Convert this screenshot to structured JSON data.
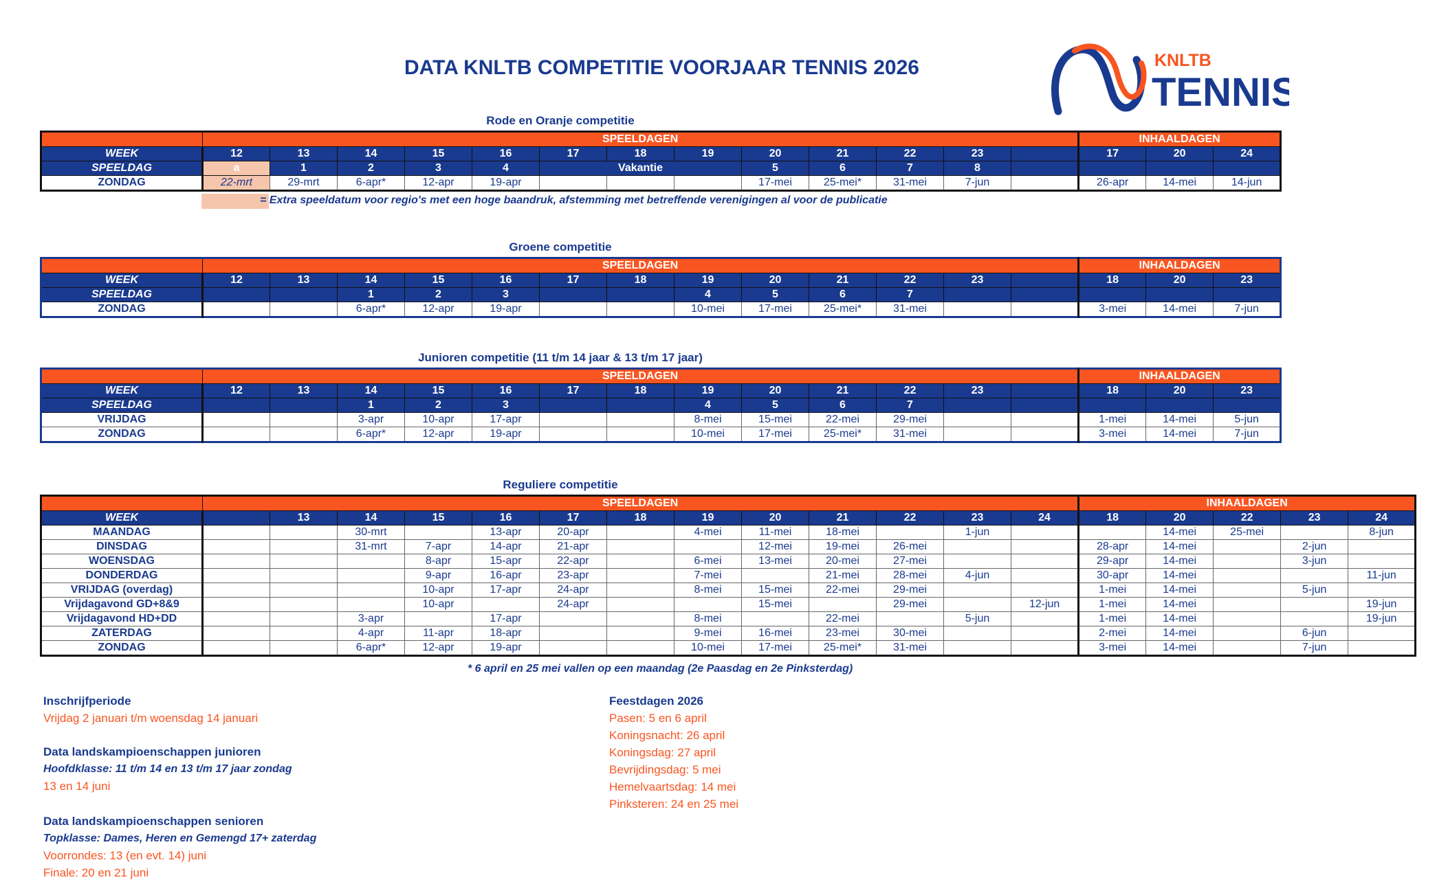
{
  "title": "DATA KNLTB COMPETITIE VOORJAAR TENNIS 2026",
  "logo": {
    "text_top": "KNLTB",
    "text_main": "TENNIS",
    "colors": {
      "orange": "#f95520",
      "blue": "#1a3a8f"
    }
  },
  "colors": {
    "orange": "#f95520",
    "blue": "#1a3a8f",
    "highlight": "#f5c6ac"
  },
  "tables": [
    {
      "title": "Rode en Oranje competitie",
      "speeldagen_label": "SPEELDAGEN",
      "inhaaldagen_label": "INHAALDAGEN",
      "week_label": "WEEK",
      "weeks": [
        "12",
        "13",
        "14",
        "15",
        "16",
        "17",
        "18",
        "19",
        "20",
        "21",
        "22",
        "23",
        ""
      ],
      "inhaal_weeks": [
        "17",
        "20",
        "24"
      ],
      "rows": [
        {
          "label": "SPEELDAG",
          "type": "head",
          "cells": [
            "a",
            "1",
            "2",
            "3",
            "4",
            "Vakantie",
            null,
            null,
            "5",
            "6",
            "7",
            "8",
            ""
          ],
          "inhaal": [
            "",
            "",
            ""
          ],
          "highlight": [
            0
          ]
        },
        {
          "label": "ZONDAG",
          "type": "data",
          "cells": [
            "22-mrt",
            "29-mrt",
            "6-apr*",
            "12-apr",
            "19-apr",
            "",
            "",
            "",
            "17-mei",
            "25-mei*",
            "31-mei",
            "7-jun",
            ""
          ],
          "inhaal": [
            "26-apr",
            "14-mei",
            "14-jun"
          ],
          "highlight": [
            0
          ]
        }
      ],
      "legend_note": "=  Extra speeldatum voor regio's met een hoge baandruk, afstemming met betreffende verenigingen al voor de publicatie"
    },
    {
      "title": "Groene competitie",
      "speeldagen_label": "SPEELDAGEN",
      "inhaaldagen_label": "INHAALDAGEN",
      "week_label": "WEEK",
      "weeks": [
        "12",
        "13",
        "14",
        "15",
        "16",
        "17",
        "18",
        "19",
        "20",
        "21",
        "22",
        "23",
        ""
      ],
      "inhaal_weeks": [
        "18",
        "20",
        "23"
      ],
      "rows": [
        {
          "label": "SPEELDAG",
          "type": "head",
          "cells": [
            "",
            "",
            "1",
            "2",
            "3",
            "",
            "",
            "4",
            "5",
            "6",
            "7",
            "",
            ""
          ],
          "inhaal": [
            "",
            "",
            ""
          ]
        },
        {
          "label": "ZONDAG",
          "type": "data",
          "cells": [
            "",
            "",
            "6-apr*",
            "12-apr",
            "19-apr",
            "",
            "",
            "10-mei",
            "17-mei",
            "25-mei*",
            "31-mei",
            "",
            ""
          ],
          "inhaal": [
            "3-mei",
            "14-mei",
            "7-jun"
          ]
        }
      ]
    },
    {
      "title": "Junioren competitie (11 t/m 14 jaar & 13 t/m 17 jaar)",
      "speeldagen_label": "SPEELDAGEN",
      "inhaaldagen_label": "INHAALDAGEN",
      "week_label": "WEEK",
      "weeks": [
        "12",
        "13",
        "14",
        "15",
        "16",
        "17",
        "18",
        "19",
        "20",
        "21",
        "22",
        "23",
        ""
      ],
      "inhaal_weeks": [
        "18",
        "20",
        "23"
      ],
      "rows": [
        {
          "label": "SPEELDAG",
          "type": "head",
          "cells": [
            "",
            "",
            "1",
            "2",
            "3",
            "",
            "",
            "4",
            "5",
            "6",
            "7",
            "",
            ""
          ],
          "inhaal": [
            "",
            "",
            ""
          ]
        },
        {
          "label": "VRIJDAG",
          "type": "data",
          "cells": [
            "",
            "",
            "3-apr",
            "10-apr",
            "17-apr",
            "",
            "",
            "8-mei",
            "15-mei",
            "22-mei",
            "29-mei",
            "",
            ""
          ],
          "inhaal": [
            "1-mei",
            "14-mei",
            "5-jun"
          ]
        },
        {
          "label": "ZONDAG",
          "type": "data",
          "cells": [
            "",
            "",
            "6-apr*",
            "12-apr",
            "19-apr",
            "",
            "",
            "10-mei",
            "17-mei",
            "25-mei*",
            "31-mei",
            "",
            ""
          ],
          "inhaal": [
            "3-mei",
            "14-mei",
            "7-jun"
          ]
        }
      ]
    },
    {
      "title": "Reguliere competitie",
      "speeldagen_label": "SPEELDAGEN",
      "inhaaldagen_label": "INHAALDAGEN",
      "week_label": "WEEK",
      "weeks": [
        "",
        "13",
        "14",
        "15",
        "16",
        "17",
        "18",
        "19",
        "20",
        "21",
        "22",
        "23",
        "24"
      ],
      "inhaal_weeks": [
        "18",
        "20",
        "22",
        "23",
        "24"
      ],
      "rows": [
        {
          "label": "MAANDAG",
          "type": "data",
          "cells": [
            "",
            "",
            "30-mrt",
            "",
            "13-apr",
            "20-apr",
            "",
            "4-mei",
            "11-mei",
            "18-mei",
            "",
            "1-jun",
            ""
          ],
          "inhaal": [
            "",
            "14-mei",
            "25-mei",
            "",
            "8-jun"
          ]
        },
        {
          "label": "DINSDAG",
          "type": "data",
          "cells": [
            "",
            "",
            "31-mrt",
            "7-apr",
            "14-apr",
            "21-apr",
            "",
            "",
            "12-mei",
            "19-mei",
            "26-mei",
            "",
            ""
          ],
          "inhaal": [
            "28-apr",
            "14-mei",
            "",
            "2-jun",
            ""
          ]
        },
        {
          "label": "WOENSDAG",
          "type": "data",
          "cells": [
            "",
            "",
            "",
            "8-apr",
            "15-apr",
            "22-apr",
            "",
            "6-mei",
            "13-mei",
            "20-mei",
            "27-mei",
            "",
            ""
          ],
          "inhaal": [
            "29-apr",
            "14-mei",
            "",
            "3-jun",
            ""
          ]
        },
        {
          "label": "DONDERDAG",
          "type": "data",
          "cells": [
            "",
            "",
            "",
            "9-apr",
            "16-apr",
            "23-apr",
            "",
            "7-mei",
            "",
            "21-mei",
            "28-mei",
            "4-jun",
            ""
          ],
          "inhaal": [
            "30-apr",
            "14-mei",
            "",
            "",
            "11-jun"
          ]
        },
        {
          "label": "VRIJDAG (overdag)",
          "type": "data",
          "cells": [
            "",
            "",
            "",
            "10-apr",
            "17-apr",
            "24-apr",
            "",
            "8-mei",
            "15-mei",
            "22-mei",
            "29-mei",
            "",
            ""
          ],
          "inhaal": [
            "1-mei",
            "14-mei",
            "",
            "5-jun",
            ""
          ]
        },
        {
          "label": "Vrijdagavond GD+8&9",
          "type": "data",
          "cells": [
            "",
            "",
            "",
            "10-apr",
            "",
            "24-apr",
            "",
            "",
            "15-mei",
            "",
            "29-mei",
            "",
            "12-jun"
          ],
          "inhaal": [
            "1-mei",
            "14-mei",
            "",
            "",
            "19-jun"
          ]
        },
        {
          "label": "Vrijdagavond HD+DD",
          "type": "data",
          "cells": [
            "",
            "",
            "3-apr",
            "",
            "17-apr",
            "",
            "",
            "8-mei",
            "",
            "22-mei",
            "",
            "5-jun",
            ""
          ],
          "inhaal": [
            "1-mei",
            "14-mei",
            "",
            "",
            "19-jun"
          ]
        },
        {
          "label": "ZATERDAG",
          "type": "data",
          "cells": [
            "",
            "",
            "4-apr",
            "11-apr",
            "18-apr",
            "",
            "",
            "9-mei",
            "16-mei",
            "23-mei",
            "30-mei",
            "",
            ""
          ],
          "inhaal": [
            "2-mei",
            "14-mei",
            "",
            "6-jun",
            ""
          ]
        },
        {
          "label": "ZONDAG",
          "type": "data",
          "cells": [
            "",
            "",
            "6-apr*",
            "12-apr",
            "19-apr",
            "",
            "",
            "10-mei",
            "17-mei",
            "25-mei*",
            "31-mei",
            "",
            ""
          ],
          "inhaal": [
            "3-mei",
            "14-mei",
            "",
            "7-jun",
            ""
          ]
        }
      ],
      "footnote": "* 6 april  en 25 mei vallen op een maandag (2e Paasdag en 2e Pinksterdag)"
    }
  ],
  "info_left": {
    "inschrijf_heading": "Inschrijfperiode",
    "inschrijf_text": "Vrijdag 2 januari t/m woensdag 14 januari",
    "junioren_heading": "Data landskampioenschappen junioren",
    "junioren_sub": "Hoofdklasse: 11 t/m 14 en 13 t/m 17 jaar zondag",
    "junioren_text": "13 en 14 juni",
    "senioren_heading": "Data landskampioenschappen senioren",
    "senioren_sub": "Topklasse: Dames, Heren en Gemengd 17+ zaterdag",
    "senioren_text1": "Voorrondes: 13 (en evt. 14) juni",
    "senioren_text2": "Finale: 20 en 21 juni"
  },
  "feestdagen": {
    "heading": "Feestdagen 2026",
    "items": [
      "Pasen: 5 en 6 april",
      "Koningsnacht: 26 april",
      "Koningsdag: 27 april",
      "Bevrijdingsdag: 5 mei",
      "Hemelvaartsdag: 14 mei",
      "Pinksteren: 24 en 25 mei"
    ]
  }
}
